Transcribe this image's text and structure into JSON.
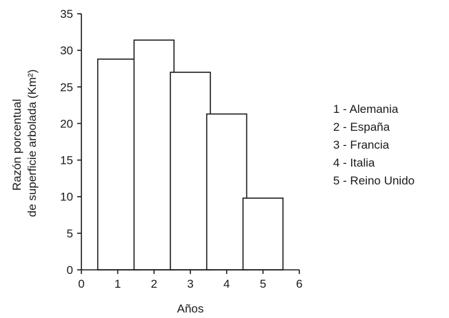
{
  "chart_data": {
    "type": "bar",
    "x": [
      1,
      2,
      3,
      4,
      5
    ],
    "values": [
      28.8,
      31.4,
      27.0,
      21.3,
      9.8
    ],
    "bar_width": 1.1,
    "xlabel": "Años",
    "ylabel_lines": [
      "Razón porcentual",
      "de superficie arbolada (Km²)"
    ],
    "xlim": [
      0,
      6
    ],
    "ylim": [
      0,
      35
    ],
    "x_ticks": [
      "0",
      "1",
      "2",
      "3",
      "4",
      "5",
      "6"
    ],
    "y_ticks": [
      "0",
      "5",
      "10",
      "15",
      "20",
      "25",
      "30",
      "35"
    ],
    "grid": false,
    "legend": {
      "placement": "right",
      "entries": [
        "1 - Alemania",
        "2 - España",
        "3 - Francia",
        "4 - Italia",
        "5 - Reino Unido"
      ]
    },
    "colors": {
      "bar_fill": "#ffffff",
      "bar_stroke": "#1a1a1a",
      "axis": "#1a1a1a"
    }
  }
}
